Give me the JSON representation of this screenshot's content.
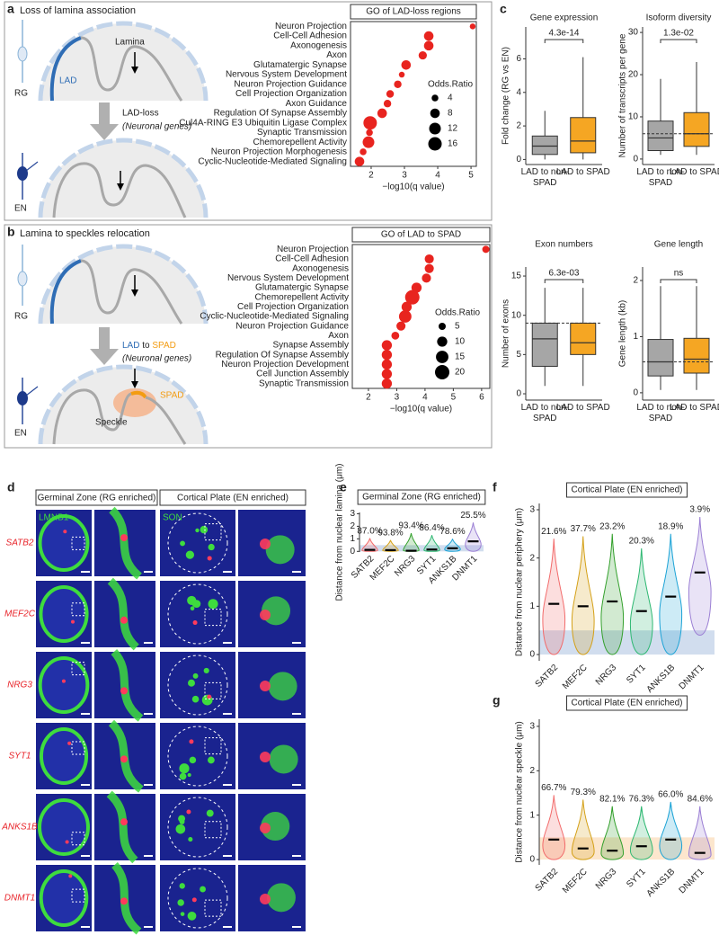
{
  "panel_labels": [
    "a",
    "b",
    "c",
    "d",
    "e",
    "f",
    "g"
  ],
  "schematic_a": {
    "title": "Loss of lamina association",
    "lamina": "Lamina",
    "lad": "LAD",
    "rg": "RG",
    "transition": "LAD-loss",
    "genes": "(Neuronal genes)",
    "en": "EN"
  },
  "schematic_b": {
    "title": "Lamina to speckles relocation",
    "rg": "RG",
    "from": "LAD",
    "to": "to",
    "target": "SPAD",
    "genes": "(Neuronal genes)",
    "spad": "SPAD",
    "speckle": "Speckle",
    "en": "EN"
  },
  "panel_d": {
    "headers": [
      "Germinal Zone (RG enriched)",
      "Cortical Plate (EN enriched)"
    ],
    "stains": [
      "LMNB1",
      "SON"
    ],
    "genes": [
      "SATB2",
      "MEF2C",
      "NRG3",
      "SYT1",
      "ANKS1B",
      "DNMT1"
    ]
  },
  "chart_data": [
    {
      "type": "dot",
      "title": "GO of LAD-loss regions",
      "x_label": "−log10(q value)",
      "categories": [
        "Neuron Projection",
        "Cell-Cell Adhesion",
        "Axonogenesis",
        "Axon",
        "Glutamatergic Synapse",
        "Nervous System Development",
        "Neuron Projection Guidance",
        "Cell Projection Organization",
        "Axon Guidance",
        "Regulation Of Synapse Assembly",
        "Cul4A-RING E3 Ubiquitin Ligase Complex",
        "Synaptic Transmission",
        "Chemorepellent Activity",
        "Neuron Projection Morphogenesis",
        "Cyclic-Nucleotide-Mediated Signaling"
      ],
      "values": [
        5.05,
        3.73,
        3.73,
        3.55,
        3.05,
        2.92,
        2.8,
        2.57,
        2.49,
        2.33,
        1.97,
        1.95,
        1.92,
        1.76,
        1.65
      ],
      "sizes": [
        3,
        8,
        8,
        6,
        8,
        3,
        5,
        5,
        5,
        8,
        16,
        4,
        12,
        4,
        8
      ],
      "size_legend": {
        "title": "Odds.Ratio",
        "values": [
          4,
          8,
          12,
          16
        ]
      },
      "color": "#e8241f",
      "xlim": [
        1.38,
        5.16
      ],
      "xticks": [
        2,
        3,
        4,
        5
      ]
    },
    {
      "type": "dot",
      "title": "GO of LAD to SPAD",
      "x_label": "−log10(q value)",
      "categories": [
        "Neuron Projection",
        "Cell-Cell Adhesion",
        "Axonogenesis",
        "Nervous System Development",
        "Glutamatergic Synapse",
        "Chemorepellent Activity",
        "Cell Projection Organization",
        "Cyclic-Nucleotide-Mediated Signaling",
        "Neuron Projection Guidance",
        "Axon",
        "Synapse Assembly",
        "Regulation Of Synapse Assembly",
        "Neuron Projection Development",
        "Cell Junction Assembly",
        "Synaptic Transmission"
      ],
      "values": [
        6.15,
        4.15,
        4.15,
        4.05,
        3.7,
        3.55,
        3.35,
        3.3,
        3.15,
        2.95,
        2.65,
        2.65,
        2.65,
        2.65,
        2.65
      ],
      "sizes": [
        5,
        8,
        8,
        8,
        10,
        20,
        10,
        15,
        8,
        6,
        10,
        10,
        10,
        10,
        10
      ],
      "size_legend": {
        "title": "Odds.Ratio",
        "values": [
          5,
          10,
          15,
          20
        ]
      },
      "color": "#e8241f",
      "xlim": [
        1.43,
        6.29
      ],
      "xticks": [
        2,
        3,
        4,
        5,
        6
      ]
    },
    {
      "type": "box",
      "title": "Gene expression",
      "y_label": "Fold change (RG vs EN)",
      "categories": [
        "LAD to non-SPAD",
        "LAD to SPAD"
      ],
      "colors": [
        "#a6a6a6",
        "#f5a623"
      ],
      "stats": [
        {
          "low": 0,
          "q1": 0.3,
          "median": 0.8,
          "q3": 1.4,
          "high": 2.9
        },
        {
          "low": 0,
          "q1": 0.4,
          "median": 1.1,
          "q3": 2.5,
          "high": 6.1
        }
      ],
      "annotation": "4.3e-14",
      "ylim": [
        -0.3,
        7.9
      ],
      "yticks": [
        0,
        2,
        4,
        6
      ]
    },
    {
      "type": "box",
      "title": "Isoform diversity",
      "y_label": "Number of transcripts per gene",
      "categories": [
        "LAD to non-SPAD",
        "LAD to SPAD"
      ],
      "colors": [
        "#a6a6a6",
        "#f5a623"
      ],
      "stats": [
        {
          "low": 1,
          "q1": 2,
          "median": 5,
          "q3": 9,
          "high": 19
        },
        {
          "low": 1,
          "q1": 3,
          "median": 6,
          "q3": 11,
          "high": 23
        }
      ],
      "annotation": "1.3e-02",
      "reference_line": 6,
      "ylim": [
        -1.3,
        31.3
      ],
      "yticks": [
        0,
        10,
        20,
        30
      ]
    },
    {
      "type": "box",
      "title": "Exon numbers",
      "y_label": "Number of exons",
      "categories": [
        "LAD to non-SPAD",
        "LAD to SPAD"
      ],
      "colors": [
        "#a6a6a6",
        "#f5a623"
      ],
      "stats": [
        {
          "low": 1,
          "q1": 3.5,
          "median": 7,
          "q3": 9,
          "high": 13.5
        },
        {
          "low": 1,
          "q1": 5,
          "median": 6.5,
          "q3": 9,
          "high": 13.5
        }
      ],
      "annotation": "6.3e-03",
      "reference_line": 9,
      "ylim": [
        -0.8,
        16.15
      ],
      "yticks": [
        0,
        5,
        10,
        15
      ]
    },
    {
      "type": "box",
      "title": "Gene length",
      "y_label": "Gene length (kb)",
      "categories": [
        "LAD to non-SPAD",
        "LAD to SPAD"
      ],
      "colors": [
        "#a6a6a6",
        "#f5a623"
      ],
      "stats": [
        {
          "low": 0.05,
          "q1": 0.3,
          "median": 0.55,
          "q3": 0.95,
          "high": 1.9
        },
        {
          "low": 0.05,
          "q1": 0.35,
          "median": 0.6,
          "q3": 0.97,
          "high": 1.9
        }
      ],
      "annotation": "ns",
      "reference_line": 0.55,
      "ylim": [
        -0.13,
        2.24
      ],
      "yticks": [
        0,
        1,
        2
      ]
    },
    {
      "type": "violin",
      "title": "Germinal Zone (RG enriched)",
      "y_label": "Distance from nuclear lamina (μm)",
      "categories": [
        "SATB2",
        "MEF2C",
        "NRG3",
        "SYT1",
        "ANKS1B",
        "DNMT1"
      ],
      "colors": [
        "#f26b6b",
        "#d4a017",
        "#33a02c",
        "#2eb872",
        "#1ca3d6",
        "#9b7fd4"
      ],
      "min": [
        0,
        0,
        0,
        0,
        0,
        0
      ],
      "median": [
        0.12,
        0.1,
        0.05,
        0.15,
        0.25,
        0.8
      ],
      "max": [
        1.05,
        0.9,
        1.45,
        1.3,
        1.0,
        2.3
      ],
      "annotations": [
        "87.0%",
        "93.8%",
        "93.4%",
        "86.4%",
        "78.6%",
        "25.5%"
      ],
      "band": [
        0,
        0.5
      ],
      "band_color": "#c5d5ea",
      "ylim": [
        -0.05,
        3.1
      ],
      "yticks": [
        0,
        1,
        2,
        3
      ]
    },
    {
      "type": "violin",
      "title": "Cortical Plate (EN enriched)",
      "y_label": "Distance from nuclear periphery (μm)",
      "categories": [
        "SATB2",
        "MEF2C",
        "NRG3",
        "SYT1",
        "ANKS1B",
        "DNMT1"
      ],
      "colors": [
        "#f26b6b",
        "#d4a017",
        "#33a02c",
        "#2eb872",
        "#1ca3d6",
        "#9b7fd4"
      ],
      "min": [
        0,
        0,
        0,
        0,
        0,
        0.4
      ],
      "median": [
        1.05,
        1.0,
        1.1,
        0.9,
        1.2,
        1.7
      ],
      "max": [
        2.4,
        2.45,
        2.5,
        2.2,
        2.5,
        2.85
      ],
      "annotations": [
        "21.6%",
        "37.7%",
        "23.2%",
        "20.3%",
        "18.9%",
        "3.9%"
      ],
      "band": [
        0,
        0.5
      ],
      "band_color": "#c5d5ea",
      "ylim": [
        -0.13,
        3.13
      ],
      "yticks": [
        0,
        1,
        2,
        3
      ]
    },
    {
      "type": "violin",
      "title": "Cortical Plate (EN enriched)",
      "y_label": "Distance from nuclear speckle (μm)",
      "categories": [
        "SATB2",
        "MEF2C",
        "NRG3",
        "SYT1",
        "ANKS1B",
        "DNMT1"
      ],
      "colors": [
        "#f26b6b",
        "#d4a017",
        "#33a02c",
        "#2eb872",
        "#1ca3d6",
        "#9b7fd4"
      ],
      "min": [
        0,
        0,
        0,
        0,
        0,
        0
      ],
      "median": [
        0.45,
        0.25,
        0.2,
        0.3,
        0.45,
        0.15
      ],
      "max": [
        1.45,
        1.35,
        1.2,
        1.2,
        1.3,
        1.2
      ],
      "annotations": [
        "66.7%",
        "79.3%",
        "82.1%",
        "76.3%",
        "66.0%",
        "84.6%"
      ],
      "band": [
        0,
        0.5
      ],
      "band_color": "#fbe0c0",
      "ylim": [
        -0.12,
        3.16
      ],
      "yticks": [
        0,
        1,
        2,
        3
      ]
    }
  ]
}
